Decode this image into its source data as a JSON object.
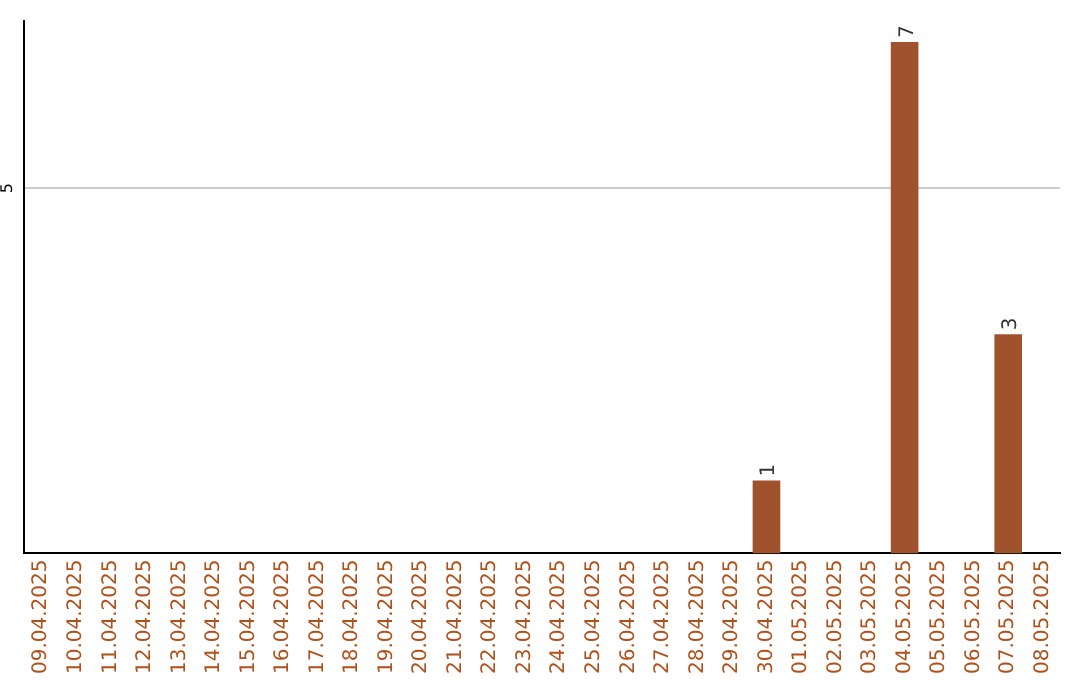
{
  "chart_data": {
    "type": "bar",
    "ylim": [
      0,
      7.3
    ],
    "categories": [
      "09.04.2025",
      "10.04.2025",
      "11.04.2025",
      "12.04.2025",
      "13.04.2025",
      "14.04.2025",
      "15.04.2025",
      "16.04.2025",
      "17.04.2025",
      "18.04.2025",
      "19.04.2025",
      "20.04.2025",
      "21.04.2025",
      "22.04.2025",
      "23.04.2025",
      "24.04.2025",
      "25.04.2025",
      "26.04.2025",
      "27.04.2025",
      "28.04.2025",
      "29.04.2025",
      "30.04.2025",
      "01.05.2025",
      "02.05.2025",
      "03.05.2025",
      "04.05.2025",
      "05.05.2025",
      "06.05.2025",
      "07.05.2025",
      "08.05.2025"
    ],
    "values": [
      null,
      null,
      null,
      null,
      null,
      null,
      null,
      null,
      null,
      null,
      null,
      null,
      null,
      null,
      null,
      null,
      null,
      null,
      null,
      null,
      null,
      1,
      null,
      null,
      null,
      7,
      null,
      null,
      3,
      null
    ],
    "data_labels": true,
    "color": "#a0522d",
    "ref_lines": [
      {
        "axis": "y",
        "value": 5,
        "label": "5",
        "color": "#cccccc"
      }
    ],
    "legend": false
  }
}
